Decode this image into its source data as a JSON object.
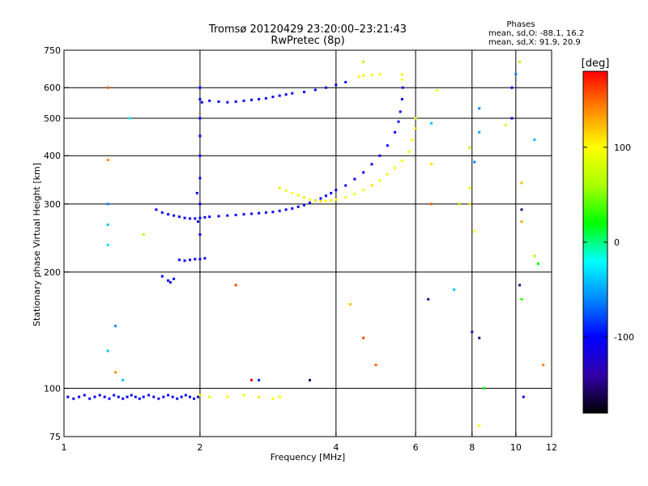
{
  "chart_data": {
    "type": "scatter",
    "title": "Tromsø 20120429 23:20:00–23:21:43",
    "subtitle": "RwPretec (8p)",
    "xlabel": "Frequency [MHz]",
    "ylabel": "Stationary phase Virtual Height [km]",
    "xscale": "log",
    "yscale": "log",
    "xlim": [
      1,
      12
    ],
    "ylim": [
      75,
      750
    ],
    "xticks": [
      1,
      2,
      4,
      6,
      8,
      10,
      12
    ],
    "xtick_labels": [
      "1",
      "2",
      "4",
      "6",
      "8",
      "10",
      "12"
    ],
    "yticks": [
      75,
      100,
      200,
      300,
      400,
      500,
      600,
      750
    ],
    "ytick_labels": [
      "75",
      "100",
      "200",
      "300",
      "400",
      "500",
      "600",
      "750"
    ],
    "x_gridlines": [
      2,
      4,
      6,
      8,
      10
    ],
    "y_gridlines": [
      100,
      200,
      300,
      400,
      500,
      600
    ],
    "grid": true,
    "phases_legend": {
      "title": "Phases",
      "line1": "mean, sd,O: -88.1, 16.2",
      "line2": "mean, sd,X:  91.9, 20.9"
    },
    "colorbar": {
      "label": "[deg]",
      "range": [
        -180,
        180
      ],
      "ticks": [
        100,
        0,
        -100
      ],
      "tick_labels": [
        "100",
        "0",
        "-100"
      ],
      "colors": [
        "#000000",
        "#3300aa",
        "#0000ff",
        "#0088ff",
        "#00ffff",
        "#00ff00",
        "#aaff00",
        "#ffff00",
        "#ff8800",
        "#ff0000"
      ]
    },
    "series": [
      {
        "points": [
          [
            1.02,
            95,
            -110
          ],
          [
            1.05,
            94,
            -105
          ],
          [
            1.08,
            95,
            -100
          ],
          [
            1.11,
            96,
            -108
          ],
          [
            1.14,
            94,
            -112
          ],
          [
            1.17,
            95,
            -98
          ],
          [
            1.2,
            96,
            -104
          ],
          [
            1.23,
            95,
            -110
          ],
          [
            1.26,
            94,
            -102
          ],
          [
            1.29,
            96,
            -96
          ],
          [
            1.32,
            95,
            -108
          ],
          [
            1.35,
            94,
            -114
          ],
          [
            1.38,
            95,
            -100
          ],
          [
            1.41,
            96,
            -106
          ],
          [
            1.44,
            95,
            -98
          ],
          [
            1.47,
            94,
            -110
          ],
          [
            1.5,
            95,
            -104
          ],
          [
            1.54,
            96,
            -100
          ],
          [
            1.58,
            95,
            -108
          ],
          [
            1.62,
            94,
            -112
          ],
          [
            1.66,
            95,
            -100
          ],
          [
            1.7,
            96,
            -104
          ],
          [
            1.74,
            95,
            -110
          ],
          [
            1.78,
            94,
            -98
          ],
          [
            1.82,
            95,
            -106
          ],
          [
            1.86,
            96,
            -100
          ],
          [
            1.9,
            95,
            -108
          ],
          [
            1.94,
            94,
            -104
          ],
          [
            1.98,
            95,
            -110
          ],
          [
            2.0,
            96,
            80
          ],
          [
            2.1,
            95,
            90
          ],
          [
            2.3,
            95,
            100
          ],
          [
            2.5,
            96,
            95
          ],
          [
            2.7,
            95,
            105
          ],
          [
            2.9,
            94,
            100
          ],
          [
            3.0,
            95,
            95
          ]
        ]
      },
      {
        "points": [
          [
            1.6,
            290,
            -110
          ],
          [
            1.65,
            285,
            -105
          ],
          [
            1.7,
            282,
            -100
          ],
          [
            1.75,
            280,
            -112
          ],
          [
            1.8,
            278,
            -108
          ],
          [
            1.85,
            276,
            -96
          ],
          [
            1.9,
            275,
            -104
          ],
          [
            1.95,
            275,
            -110
          ],
          [
            2.0,
            276,
            -100
          ],
          [
            2.05,
            277,
            -106
          ],
          [
            2.1,
            278,
            -98
          ],
          [
            2.2,
            279,
            -110
          ],
          [
            2.3,
            280,
            -104
          ],
          [
            2.4,
            281,
            -100
          ],
          [
            2.5,
            282,
            -108
          ],
          [
            2.6,
            283,
            -112
          ],
          [
            2.7,
            284,
            -100
          ],
          [
            2.8,
            285,
            -104
          ],
          [
            2.9,
            286,
            -110
          ],
          [
            3.0,
            288,
            -98
          ],
          [
            3.1,
            290,
            -106
          ],
          [
            3.2,
            292,
            -100
          ],
          [
            3.3,
            295,
            -108
          ],
          [
            3.4,
            298,
            -104
          ],
          [
            3.5,
            302,
            -110
          ],
          [
            3.6,
            306,
            -100
          ],
          [
            3.7,
            310,
            -106
          ],
          [
            3.8,
            315,
            -98
          ],
          [
            3.9,
            320,
            -104
          ],
          [
            4.0,
            326,
            -100
          ],
          [
            4.2,
            335,
            -108
          ],
          [
            4.4,
            348,
            -104
          ],
          [
            4.6,
            362,
            -100
          ],
          [
            4.8,
            380,
            -110
          ],
          [
            5.0,
            400,
            -104
          ],
          [
            5.2,
            425,
            -100
          ],
          [
            5.4,
            460,
            -106
          ],
          [
            5.5,
            490,
            -100
          ],
          [
            5.55,
            520,
            -98
          ],
          [
            5.6,
            560,
            -104
          ],
          [
            5.62,
            600,
            -110
          ]
        ]
      },
      {
        "points": [
          [
            3.0,
            330,
            80
          ],
          [
            3.1,
            325,
            90
          ],
          [
            3.2,
            320,
            100
          ],
          [
            3.3,
            316,
            95
          ],
          [
            3.4,
            312,
            105
          ],
          [
            3.5,
            308,
            100
          ],
          [
            3.6,
            306,
            95
          ],
          [
            3.7,
            305,
            110
          ],
          [
            3.8,
            305,
            100
          ],
          [
            3.9,
            306,
            90
          ],
          [
            4.0,
            308,
            100
          ],
          [
            4.2,
            312,
            105
          ],
          [
            4.4,
            318,
            95
          ],
          [
            4.6,
            326,
            100
          ],
          [
            4.8,
            335,
            110
          ],
          [
            5.0,
            345,
            100
          ],
          [
            5.2,
            358,
            95
          ],
          [
            5.4,
            372,
            105
          ],
          [
            5.6,
            388,
            100
          ],
          [
            5.8,
            410,
            95
          ],
          [
            5.9,
            440,
            100
          ],
          [
            6.0,
            470,
            110
          ],
          [
            6.0,
            500,
            100
          ]
        ]
      },
      {
        "points": [
          [
            2.0,
            560,
            -110
          ],
          [
            2.1,
            555,
            -104
          ],
          [
            2.2,
            552,
            -100
          ],
          [
            2.3,
            550,
            -108
          ],
          [
            2.4,
            552,
            -112
          ],
          [
            2.5,
            555,
            -100
          ],
          [
            2.6,
            558,
            -104
          ],
          [
            2.7,
            560,
            -110
          ],
          [
            2.8,
            563,
            -98
          ],
          [
            2.9,
            568,
            -106
          ],
          [
            3.0,
            572,
            -100
          ],
          [
            3.1,
            576,
            -108
          ],
          [
            3.2,
            580,
            -104
          ],
          [
            3.4,
            585,
            -110
          ],
          [
            3.6,
            592,
            -100
          ],
          [
            3.8,
            600,
            -106
          ],
          [
            4.0,
            610,
            -98
          ],
          [
            4.2,
            620,
            -104
          ]
        ]
      },
      {
        "points": [
          [
            1.8,
            215,
            -110
          ],
          [
            1.85,
            214,
            -104
          ],
          [
            1.9,
            215,
            -100
          ],
          [
            1.95,
            216,
            -108
          ],
          [
            2.0,
            216,
            -112
          ],
          [
            2.05,
            217,
            -100
          ],
          [
            1.7,
            190,
            -110
          ],
          [
            1.72,
            188,
            -104
          ],
          [
            1.75,
            192,
            -100
          ],
          [
            1.65,
            195,
            -108
          ]
        ]
      },
      {
        "points": [
          [
            2.0,
            250,
            -104
          ],
          [
            2.0,
            300,
            -110
          ],
          [
            2.0,
            350,
            -100
          ],
          [
            2.0,
            400,
            -106
          ],
          [
            2.0,
            450,
            -98
          ],
          [
            2.0,
            500,
            -104
          ],
          [
            2.02,
            550,
            -110
          ],
          [
            2.0,
            600,
            -100
          ],
          [
            1.98,
            270,
            -106
          ],
          [
            1.97,
            320,
            -98
          ]
        ]
      },
      {
        "points": [
          [
            4.5,
            640,
            100
          ],
          [
            4.6,
            645,
            95
          ],
          [
            4.8,
            648,
            105
          ],
          [
            5.0,
            650,
            100
          ],
          [
            5.6,
            650,
            90
          ],
          [
            5.6,
            630,
            100
          ]
        ]
      },
      {
        "points": [
          [
            1.25,
            600,
            150
          ],
          [
            1.25,
            390,
            140
          ],
          [
            1.4,
            500,
            -20
          ],
          [
            1.25,
            300,
            -60
          ],
          [
            1.25,
            265,
            -40
          ],
          [
            1.25,
            235,
            -30
          ],
          [
            1.3,
            145,
            -60
          ],
          [
            1.25,
            125,
            -40
          ],
          [
            1.3,
            110,
            140
          ],
          [
            1.35,
            105,
            -40
          ],
          [
            1.5,
            250,
            60
          ],
          [
            2.4,
            185,
            160
          ],
          [
            2.6,
            105,
            180
          ],
          [
            2.7,
            105,
            -90
          ],
          [
            3.5,
            105,
            -160
          ],
          [
            4.3,
            165,
            120
          ],
          [
            4.6,
            135,
            160
          ],
          [
            4.9,
            115,
            150
          ],
          [
            4.6,
            700,
            60
          ],
          [
            6.5,
            485,
            -40
          ],
          [
            6.5,
            380,
            110
          ],
          [
            6.5,
            300,
            150
          ],
          [
            6.7,
            590,
            100
          ],
          [
            7.5,
            300,
            60
          ],
          [
            7.9,
            420,
            60
          ],
          [
            7.9,
            330,
            100
          ],
          [
            7.9,
            300,
            110
          ],
          [
            8.1,
            255,
            100
          ],
          [
            8.3,
            530,
            -60
          ],
          [
            8.3,
            460,
            -50
          ],
          [
            8.1,
            385,
            -60
          ],
          [
            8.3,
            135,
            -150
          ],
          [
            8.5,
            100,
            20
          ],
          [
            8.3,
            80,
            100
          ],
          [
            9.8,
            600,
            -100
          ],
          [
            9.8,
            500,
            -110
          ],
          [
            10.3,
            340,
            120
          ],
          [
            10.3,
            290,
            -150
          ],
          [
            10.3,
            270,
            130
          ],
          [
            10.2,
            185,
            -150
          ],
          [
            10.3,
            170,
            30
          ],
          [
            10.4,
            95,
            -100
          ],
          [
            11.0,
            440,
            -40
          ],
          [
            11.0,
            220,
            60
          ],
          [
            11.2,
            210,
            20
          ],
          [
            11.5,
            115,
            140
          ],
          [
            6.4,
            170,
            -140
          ],
          [
            7.3,
            180,
            -40
          ],
          [
            8.0,
            140,
            -140
          ],
          [
            9.5,
            480,
            80
          ],
          [
            10.2,
            700,
            60
          ],
          [
            10.0,
            650,
            -60
          ]
        ]
      }
    ]
  }
}
